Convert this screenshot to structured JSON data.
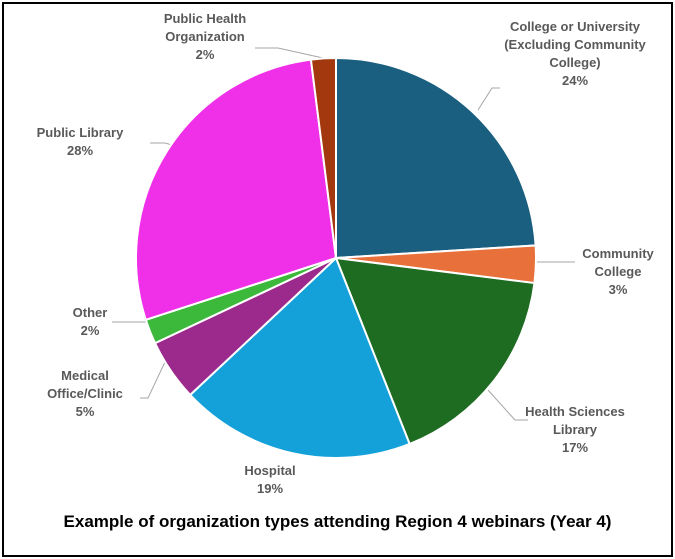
{
  "chart_data": {
    "type": "pie",
    "title": "Example of organization types attending Region 4 webinars (Year 4)",
    "categories": [
      "College or University (Excluding Community College)",
      "Community College",
      "Health Sciences Library",
      "Hospital",
      "Medical Office/Clinic",
      "Other",
      "Public Library",
      "Public Health Organization"
    ],
    "values": [
      24,
      3,
      17,
      19,
      5,
      2,
      28,
      2
    ],
    "value_labels": [
      "24%",
      "3%",
      "17%",
      "19%",
      "5%",
      "2%",
      "28%",
      "2%"
    ],
    "colors": [
      "#1a5e80",
      "#e8703a",
      "#1e6b22",
      "#14a0d8",
      "#9b2a8c",
      "#3cb83a",
      "#f030e8",
      "#a3380f"
    ]
  }
}
